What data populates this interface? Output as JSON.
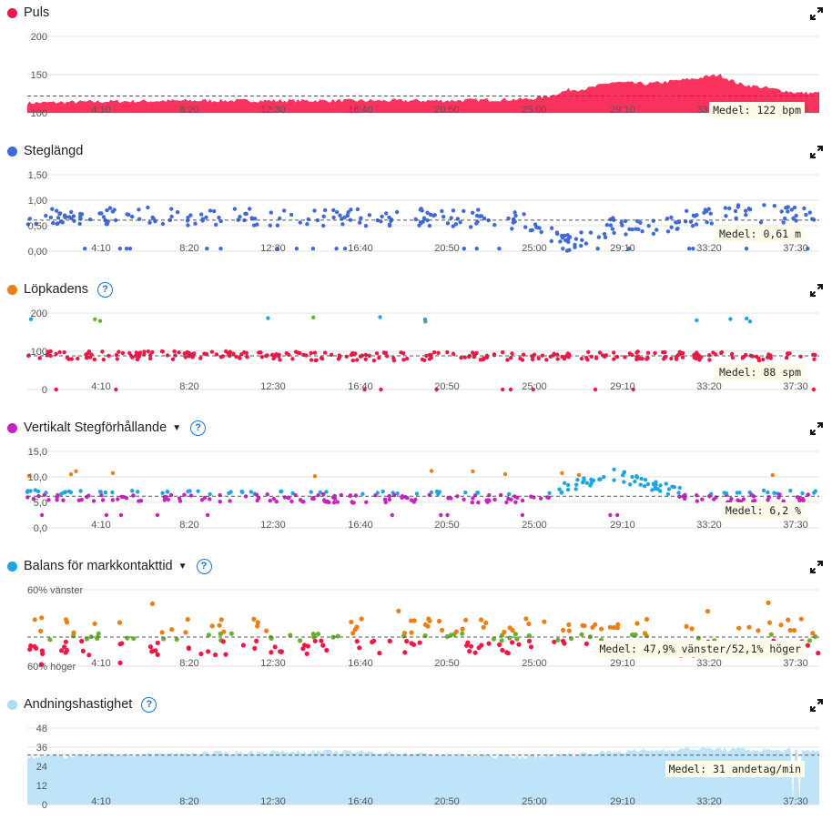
{
  "panels": [
    {
      "key": "puls",
      "title": "Puls",
      "color": "#e8194a",
      "help": false,
      "caret": false,
      "average": "Medel: 122 bpm",
      "yticks": [
        "200",
        "150",
        "100"
      ]
    },
    {
      "key": "steg",
      "title": "Steglängd",
      "color": "#3f6ad8",
      "help": false,
      "caret": false,
      "average": "Medel: 0,61 m",
      "yticks": [
        "1,50",
        "1,00",
        "0,50",
        "0,00"
      ]
    },
    {
      "key": "kad",
      "title": "Löpkadens",
      "color": "#ee7d12",
      "help": true,
      "caret": false,
      "average": "Medel: 88 spm",
      "yticks": [
        "200",
        "100",
        "0"
      ]
    },
    {
      "key": "vert",
      "title": "Vertikalt Stegförhållande",
      "color": "#c723c1",
      "help": true,
      "caret": true,
      "average": "Medel: 6,2 %",
      "yticks": [
        "15,0",
        "10,0",
        "5,0",
        "0,0"
      ]
    },
    {
      "key": "bal",
      "title": "Balans för markkontakttid",
      "color": "#1ea6e2",
      "help": true,
      "caret": true,
      "average": "Medel: 47,9% vänster/52,1% höger",
      "yticks": [
        "60% vänster",
        "60% höger"
      ]
    },
    {
      "key": "andn",
      "title": "Andningshastighet",
      "color": "#a9dcf5",
      "help": true,
      "caret": false,
      "average": "Medel: 31 andetag/min",
      "yticks": [
        "48",
        "36",
        "24",
        "12",
        "0"
      ]
    }
  ],
  "xticks": [
    "4:10",
    "8:20",
    "12:30",
    "16:40",
    "20:50",
    "25:00",
    "29:10",
    "33:20",
    "37:30"
  ],
  "help_label": "?",
  "caret_label": "▼",
  "chart_data": [
    {
      "type": "area",
      "title": "Puls",
      "ylim": [
        100,
        200
      ],
      "average": 122,
      "x": [
        "0:00",
        "4:10",
        "8:20",
        "12:30",
        "16:40",
        "20:50",
        "25:00",
        "26:00",
        "27:00",
        "28:00",
        "29:10",
        "31:00",
        "33:20",
        "34:30",
        "35:30",
        "37:30",
        "38:30"
      ],
      "values": [
        113,
        115,
        116,
        116,
        116,
        116,
        118,
        122,
        130,
        132,
        140,
        138,
        145,
        150,
        138,
        130,
        126
      ]
    },
    {
      "type": "scatter",
      "title": "Steglängd",
      "ylim": [
        0,
        1.5
      ],
      "average": 0.61,
      "unit": "m",
      "x": [
        "0:00",
        "4:10",
        "8:20",
        "12:30",
        "16:40",
        "20:50",
        "25:00",
        "27:00",
        "29:10",
        "31:00",
        "33:20",
        "35:30",
        "37:30"
      ],
      "values": [
        0.66,
        0.7,
        0.68,
        0.67,
        0.66,
        0.67,
        0.6,
        0.15,
        0.5,
        0.5,
        0.65,
        0.75,
        0.72
      ]
    },
    {
      "type": "scatter",
      "title": "Löpkadens",
      "ylim": [
        0,
        200
      ],
      "average": 88,
      "unit": "spm",
      "x": [
        "0:00",
        "4:10",
        "8:20",
        "12:30",
        "16:40",
        "20:50",
        "25:00",
        "29:10",
        "33:20",
        "37:30"
      ],
      "values": [
        92,
        88,
        90,
        88,
        86,
        88,
        86,
        90,
        88,
        86
      ]
    },
    {
      "type": "scatter",
      "title": "Vertikalt Stegförhållande",
      "ylim": [
        0,
        15
      ],
      "average": 6.2,
      "unit": "%",
      "x": [
        "0:00",
        "4:10",
        "8:20",
        "12:30",
        "16:40",
        "20:50",
        "25:00",
        "29:10",
        "33:20",
        "37:30"
      ],
      "values": [
        6.5,
        6.3,
        6.2,
        6.1,
        6.0,
        6.2,
        5.8,
        10.5,
        6.0,
        6.3
      ]
    },
    {
      "type": "scatter",
      "title": "Balans för markkontakttid",
      "ylim": [
        "60% höger",
        "60% vänster"
      ],
      "average": "47,9% vänster/52,1% höger"
    },
    {
      "type": "area",
      "title": "Andningshastighet",
      "ylim": [
        0,
        48
      ],
      "average": 31,
      "unit": "andetag/min",
      "x": [
        "0:00",
        "4:10",
        "8:20",
        "12:30",
        "16:40",
        "20:50",
        "25:00",
        "29:10",
        "33:20",
        "37:30"
      ],
      "values": [
        30,
        31,
        32,
        33,
        33,
        31,
        30,
        33,
        35,
        34
      ]
    }
  ]
}
